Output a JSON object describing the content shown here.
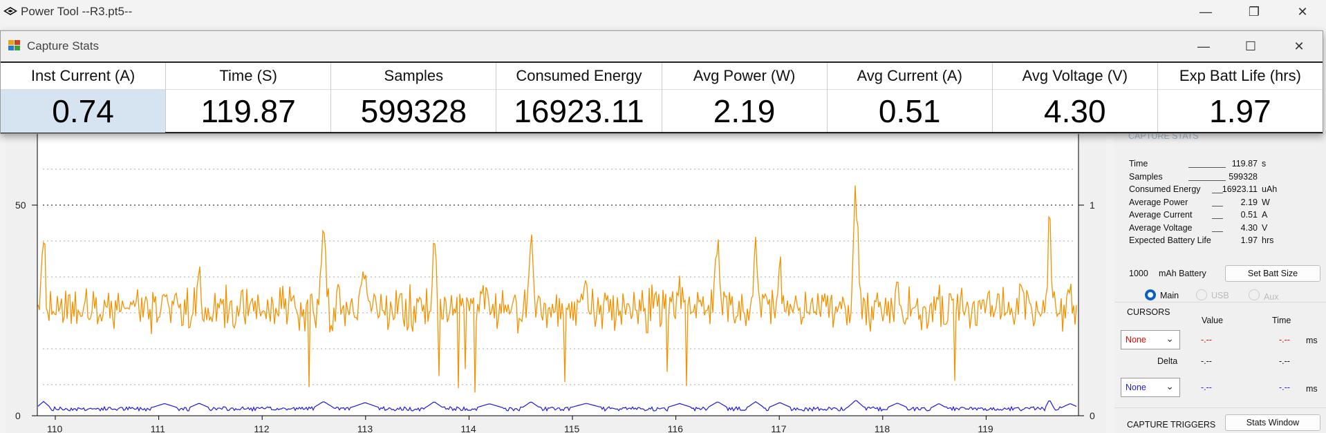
{
  "main_window": {
    "title": "Power Tool --R3.pt5--",
    "minimize": "—",
    "restore": "❐",
    "close": "✕"
  },
  "stats_window": {
    "title": "Capture Stats",
    "minimize": "—",
    "maximize": "☐",
    "close": "✕",
    "columns": [
      {
        "header": "Inst Current (A)",
        "value": "0.74"
      },
      {
        "header": "Time (S)",
        "value": "119.87"
      },
      {
        "header": "Samples",
        "value": "599328"
      },
      {
        "header": "Consumed Energy",
        "value": "16923.11"
      },
      {
        "header": "Avg Power (W)",
        "value": "2.19"
      },
      {
        "header": "Avg Current (A)",
        "value": "0.51"
      },
      {
        "header": "Avg Voltage (V)",
        "value": "4.30"
      },
      {
        "header": "Exp Batt Life (hrs)",
        "value": "1.97"
      }
    ]
  },
  "plot": {
    "left_axis_ticks": [
      "50",
      "0"
    ],
    "right_axis_ticks": [
      "1",
      "0"
    ],
    "x_ticks": [
      "110",
      "111",
      "112",
      "113",
      "114",
      "115",
      "116",
      "117",
      "118",
      "119"
    ],
    "colors": {
      "primary_trace": "#f39200",
      "secondary_trace": "#1a1ae0"
    }
  },
  "capture_stats_panel": {
    "group_title": "CAPTURE STATS",
    "rows": [
      {
        "label": "Time",
        "value": "119.87",
        "unit": "s"
      },
      {
        "label": "Samples",
        "value": "599328",
        "unit": ""
      },
      {
        "label": "Consumed Energy",
        "value": "16923.11",
        "unit": "uAh"
      },
      {
        "label": "Average Power",
        "value": "2.19",
        "unit": "W"
      },
      {
        "label": "Average Current",
        "value": "0.51",
        "unit": "A"
      },
      {
        "label": "Average Voltage",
        "value": "4.30",
        "unit": "V"
      },
      {
        "label": "Expected Battery Life",
        "value": "1.97",
        "unit": "hrs"
      }
    ],
    "battery_size": "1000",
    "battery_label": "mAh Battery",
    "set_batt_button": "Set Batt Size",
    "channels": [
      {
        "label": "Main",
        "selected": true
      },
      {
        "label": "USB",
        "selected": false
      },
      {
        "label": "Aux",
        "selected": false
      }
    ]
  },
  "cursors_panel": {
    "group_title": "CURSORS",
    "value_header": "Value",
    "time_header": "Time",
    "cursor1_select": "None",
    "cursor1_value": "-.--",
    "cursor1_time": "-.--",
    "cursor1_unit": "ms",
    "delta_label": "Delta",
    "delta_value": "-.--",
    "delta_time": "-.--",
    "cursor2_select": "None",
    "cursor2_value": "-.--",
    "cursor2_time": "-.--",
    "cursor2_unit": "ms"
  },
  "triggers_panel": {
    "group_title": "CAPTURE TRIGGERS",
    "stats_window_button": "Stats Window"
  }
}
